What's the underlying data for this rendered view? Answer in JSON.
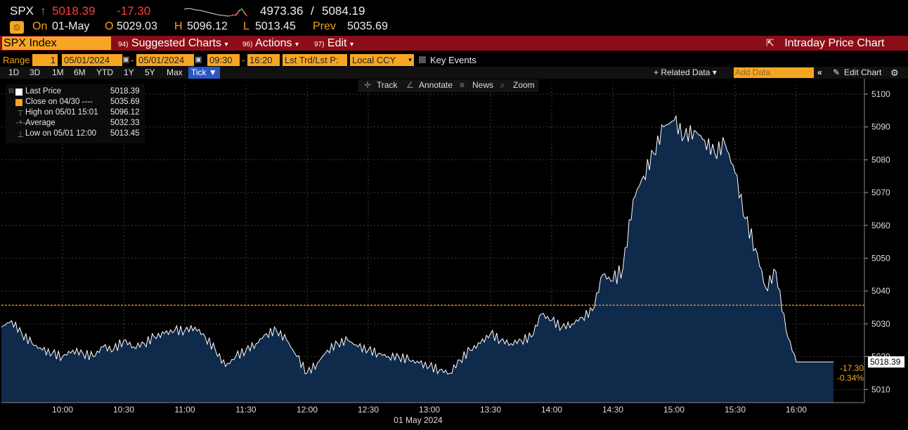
{
  "header": {
    "ticker": "SPX",
    "arrow": "↑",
    "last": "5018.39",
    "change": "-17.30",
    "range_low": "4973.36",
    "range_sep": "/",
    "range_high": "5084.19",
    "on_label": "On",
    "date": "01-May",
    "open_label": "O",
    "open": "5029.03",
    "high_label": "H",
    "high": "5096.12",
    "low_label": "L",
    "low": "5013.45",
    "prev_label": "Prev",
    "prev": "5035.69"
  },
  "toolbar": {
    "security": "SPX Index",
    "suggested_num": "94)",
    "suggested": "Suggested Charts",
    "actions_num": "96)",
    "actions": "Actions",
    "edit_num": "97)",
    "edit": "Edit",
    "chart_title": "Intraday Price Chart"
  },
  "range": {
    "label": "Range",
    "count": "1",
    "start": "05/01/2024",
    "dash": "-",
    "end": "05/01/2024",
    "time_start": "09:30",
    "time_end": "16:20",
    "field1": "Lst Trd/Lst P:",
    "field2": "Local CCY",
    "key_events": "Key Events"
  },
  "periods": [
    "1D",
    "3D",
    "1M",
    "6M",
    "YTD",
    "1Y",
    "5Y",
    "Max",
    "Tick ▼"
  ],
  "right_menu": {
    "related": "+ Related Data ▾",
    "add_placeholder": "Add Data",
    "edit_chart": "Edit Chart"
  },
  "tools": {
    "track": "Track",
    "annotate": "Annotate",
    "news": "News",
    "zoom": "Zoom"
  },
  "legend": {
    "last_label": "Last Price",
    "last_value": "5018.39",
    "close_label": "Close on 04/30 ----",
    "close_value": "5035.69",
    "high_label": "High on 05/01 15:01",
    "high_value": "5096.12",
    "avg_label": "Average",
    "avg_value": "5032.33",
    "low_label": "Low on 05/01 12:00",
    "low_value": "5013.45"
  },
  "colors": {
    "accent": "#f6a623",
    "down": "#ff3b3b",
    "up": "#2fd32f",
    "fill": "#0f2a4a",
    "line": "#ffffff",
    "menu_bar": "#8b0d18"
  },
  "chart_data": {
    "type": "area",
    "x_axis_label": "01 May 2024",
    "xticks": [
      "10:00",
      "10:30",
      "11:00",
      "11:30",
      "12:00",
      "12:30",
      "13:00",
      "13:30",
      "14:00",
      "14:30",
      "15:00",
      "15:30",
      "16:00"
    ],
    "yticks": [
      5010,
      5020,
      5030,
      5040,
      5050,
      5060,
      5070,
      5080,
      5090,
      5100
    ],
    "ylim": [
      5006,
      5103
    ],
    "xlim_minutes": [
      "09:30",
      "16:20"
    ],
    "reference_line": {
      "label": "Close on 04/30",
      "value": 5035.69
    },
    "last_price_tag": "5018.39",
    "change_tag": "-17.30",
    "change_pct_tag": "-0.34%",
    "series": {
      "time": [
        "09:30",
        "09:35",
        "09:40",
        "09:45",
        "09:50",
        "09:55",
        "10:00",
        "10:05",
        "10:10",
        "10:15",
        "10:20",
        "10:25",
        "10:30",
        "10:35",
        "10:40",
        "10:45",
        "10:50",
        "10:55",
        "11:00",
        "11:05",
        "11:10",
        "11:15",
        "11:20",
        "11:25",
        "11:30",
        "11:35",
        "11:40",
        "11:45",
        "11:50",
        "11:55",
        "12:00",
        "12:05",
        "12:10",
        "12:15",
        "12:20",
        "12:25",
        "12:30",
        "12:35",
        "12:40",
        "12:45",
        "12:50",
        "12:55",
        "13:00",
        "13:05",
        "13:10",
        "13:15",
        "13:20",
        "13:25",
        "13:30",
        "13:35",
        "13:40",
        "13:45",
        "13:50",
        "13:55",
        "14:00",
        "14:05",
        "14:10",
        "14:15",
        "14:20",
        "14:25",
        "14:30",
        "14:35",
        "14:40",
        "14:45",
        "14:50",
        "14:55",
        "15:00",
        "15:05",
        "15:10",
        "15:15",
        "15:20",
        "15:25",
        "15:30",
        "15:35",
        "15:40",
        "15:45",
        "15:50",
        "15:55",
        "16:00"
      ],
      "values": [
        5029,
        5031,
        5027,
        5024,
        5022,
        5021,
        5020,
        5022,
        5021,
        5020,
        5023,
        5022,
        5025,
        5023,
        5024,
        5026,
        5027,
        5028,
        5028,
        5029,
        5026,
        5022,
        5017,
        5020,
        5022,
        5024,
        5027,
        5028,
        5025,
        5020,
        5015,
        5018,
        5022,
        5024,
        5025,
        5023,
        5022,
        5021,
        5020,
        5020,
        5019,
        5018,
        5017,
        5016,
        5015,
        5019,
        5022,
        5024,
        5027,
        5025,
        5024,
        5025,
        5026,
        5033,
        5031,
        5029,
        5030,
        5032,
        5034,
        5045,
        5043,
        5047,
        5068,
        5075,
        5082,
        5090,
        5092,
        5087,
        5089,
        5086,
        5082,
        5085,
        5076,
        5062,
        5053,
        5041,
        5046,
        5028,
        5018.39
      ]
    }
  }
}
